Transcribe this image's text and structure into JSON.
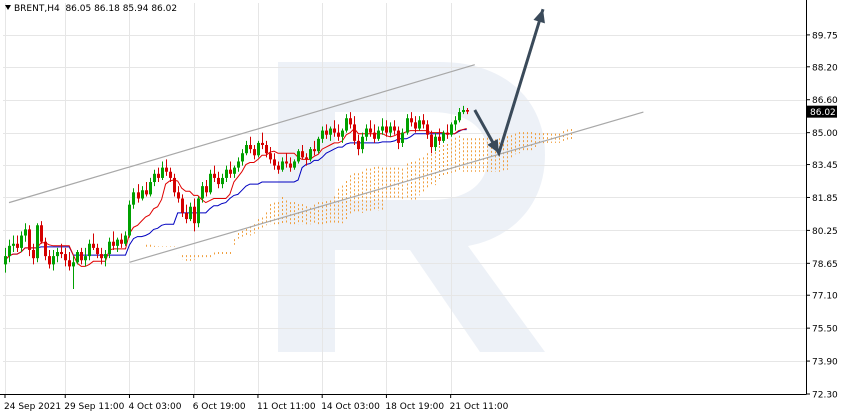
{
  "header": {
    "symbol": "BRENT,H4",
    "ohlc": "86.05 86.18 85.94 86.02"
  },
  "colors": {
    "candle_up": "#00a000",
    "candle_down": "#d40000",
    "tenkan": "#e00000",
    "kijun": "#0000c0",
    "cloud": "#f0a040",
    "channel": "#a8a8a8",
    "arrow": "#3a4a5a",
    "grid": "#e6e6e6",
    "watermark": "#dfe6f0",
    "price_tag_bg": "#000000",
    "price_tag_text": "#ffffff"
  },
  "chart_data": {
    "type": "candlestick",
    "symbol": "BRENT",
    "timeframe": "H4",
    "current_price": "86.02",
    "ylim": [
      72.3,
      91.3
    ],
    "yticks": [
      "89.75",
      "88.20",
      "86.60",
      "85.00",
      "83.45",
      "81.85",
      "80.25",
      "78.65",
      "77.10",
      "75.50",
      "73.90",
      "72.30"
    ],
    "xticks": [
      "24 Sep 2021",
      "29 Sep 11:00",
      "4 Oct 03:00",
      "6 Oct 19:00",
      "11 Oct 11:00",
      "14 Oct 03:00",
      "18 Oct 19:00",
      "21 Oct 11:00"
    ],
    "xtick_bars": [
      0,
      15,
      31,
      47,
      63,
      79,
      95,
      111
    ],
    "total_bars": 200,
    "visible_bars": 123,
    "candles": [
      [
        78.6,
        79.4,
        78.2,
        79.0
      ],
      [
        79.0,
        79.8,
        78.7,
        79.5
      ],
      [
        79.5,
        80.0,
        79.2,
        79.6
      ],
      [
        79.6,
        80.0,
        79.2,
        79.4
      ],
      [
        79.4,
        80.2,
        79.2,
        80.0
      ],
      [
        80.0,
        80.6,
        79.7,
        80.3
      ],
      [
        80.3,
        80.5,
        79.0,
        79.3
      ],
      [
        79.3,
        79.6,
        78.6,
        78.9
      ],
      [
        78.9,
        80.6,
        78.7,
        80.5
      ],
      [
        80.5,
        80.7,
        79.6,
        79.7
      ],
      [
        79.7,
        79.9,
        78.8,
        79.0
      ],
      [
        79.0,
        79.3,
        78.4,
        78.6
      ],
      [
        78.6,
        79.3,
        78.3,
        79.0
      ],
      [
        79.0,
        79.4,
        78.7,
        79.2
      ],
      [
        79.2,
        79.6,
        78.9,
        79.1
      ],
      [
        79.1,
        79.4,
        78.5,
        78.8
      ],
      [
        78.8,
        79.2,
        78.3,
        78.5
      ],
      [
        78.5,
        79.0,
        77.4,
        78.7
      ],
      [
        78.7,
        79.3,
        78.6,
        79.2
      ],
      [
        79.2,
        79.4,
        78.6,
        78.8
      ],
      [
        78.8,
        79.4,
        78.5,
        79.0
      ],
      [
        79.0,
        79.8,
        78.8,
        79.6
      ],
      [
        79.6,
        80.1,
        79.3,
        79.4
      ],
      [
        79.4,
        79.6,
        78.9,
        79.1
      ],
      [
        79.1,
        79.4,
        78.6,
        78.9
      ],
      [
        78.9,
        79.3,
        78.5,
        79.1
      ],
      [
        79.1,
        79.9,
        78.9,
        79.7
      ],
      [
        79.7,
        80.2,
        79.3,
        79.5
      ],
      [
        79.5,
        79.9,
        79.2,
        79.8
      ],
      [
        79.8,
        80.1,
        79.4,
        79.6
      ],
      [
        79.6,
        80.2,
        79.5,
        80.0
      ],
      [
        80.0,
        81.7,
        79.9,
        81.5
      ],
      [
        81.5,
        82.3,
        81.3,
        82.1
      ],
      [
        82.1,
        82.5,
        81.6,
        81.8
      ],
      [
        81.8,
        82.4,
        81.7,
        82.2
      ],
      [
        82.2,
        82.6,
        81.9,
        82.0
      ],
      [
        82.0,
        82.8,
        81.9,
        82.6
      ],
      [
        82.6,
        83.2,
        82.4,
        83.0
      ],
      [
        83.0,
        83.3,
        82.6,
        82.8
      ],
      [
        82.8,
        83.6,
        82.7,
        83.3
      ],
      [
        83.3,
        83.7,
        82.9,
        83.1
      ],
      [
        83.1,
        83.3,
        82.6,
        82.8
      ],
      [
        82.8,
        83.0,
        81.9,
        82.1
      ],
      [
        82.1,
        82.4,
        81.6,
        81.8
      ],
      [
        81.8,
        82.0,
        80.9,
        81.1
      ],
      [
        81.1,
        81.5,
        80.6,
        80.8
      ],
      [
        80.8,
        81.6,
        80.7,
        81.4
      ],
      [
        81.4,
        81.8,
        80.2,
        80.6
      ],
      [
        80.6,
        81.9,
        80.4,
        81.8
      ],
      [
        81.8,
        82.6,
        81.6,
        82.4
      ],
      [
        82.4,
        82.7,
        81.9,
        82.1
      ],
      [
        82.1,
        83.2,
        82.0,
        83.0
      ],
      [
        83.0,
        83.4,
        82.6,
        82.8
      ],
      [
        82.8,
        83.1,
        82.3,
        82.5
      ],
      [
        82.5,
        83.0,
        82.3,
        82.8
      ],
      [
        82.8,
        83.4,
        82.6,
        83.2
      ],
      [
        83.2,
        83.6,
        82.8,
        83.0
      ],
      [
        83.0,
        83.4,
        82.8,
        83.3
      ],
      [
        83.3,
        83.8,
        83.1,
        83.6
      ],
      [
        83.6,
        84.2,
        83.4,
        84.0
      ],
      [
        84.0,
        84.6,
        83.9,
        84.4
      ],
      [
        84.4,
        84.8,
        84.0,
        84.2
      ],
      [
        84.2,
        84.4,
        83.7,
        83.9
      ],
      [
        83.9,
        84.6,
        83.8,
        84.5
      ],
      [
        84.5,
        85.0,
        84.2,
        84.4
      ],
      [
        84.4,
        84.6,
        83.8,
        84.0
      ],
      [
        84.0,
        84.3,
        83.5,
        83.7
      ],
      [
        83.7,
        84.0,
        83.2,
        83.4
      ],
      [
        83.4,
        83.6,
        83.0,
        83.2
      ],
      [
        83.2,
        83.8,
        83.1,
        83.6
      ],
      [
        83.6,
        84.0,
        83.3,
        83.5
      ],
      [
        83.5,
        83.8,
        83.1,
        83.3
      ],
      [
        83.3,
        83.7,
        83.2,
        83.6
      ],
      [
        83.6,
        84.2,
        83.5,
        84.1
      ],
      [
        84.1,
        84.4,
        83.7,
        83.8
      ],
      [
        83.8,
        84.0,
        83.4,
        83.7
      ],
      [
        83.7,
        84.3,
        83.6,
        84.2
      ],
      [
        84.2,
        84.6,
        83.9,
        84.1
      ],
      [
        84.1,
        84.8,
        84.0,
        84.7
      ],
      [
        84.7,
        85.3,
        84.5,
        85.1
      ],
      [
        85.1,
        85.4,
        84.7,
        84.9
      ],
      [
        84.9,
        85.3,
        84.6,
        85.2
      ],
      [
        85.2,
        85.6,
        84.8,
        85.0
      ],
      [
        85.0,
        85.4,
        84.6,
        84.8
      ],
      [
        84.8,
        85.2,
        84.5,
        85.1
      ],
      [
        85.1,
        85.9,
        85.0,
        85.7
      ],
      [
        85.7,
        86.0,
        85.2,
        85.4
      ],
      [
        85.4,
        85.8,
        84.4,
        84.6
      ],
      [
        84.6,
        84.9,
        83.9,
        84.2
      ],
      [
        84.2,
        85.0,
        84.0,
        84.8
      ],
      [
        84.8,
        85.4,
        84.6,
        85.2
      ],
      [
        85.2,
        85.6,
        84.8,
        85.0
      ],
      [
        85.0,
        85.4,
        84.5,
        84.7
      ],
      [
        84.7,
        85.3,
        84.6,
        85.1
      ],
      [
        85.1,
        85.7,
        84.9,
        85.3
      ],
      [
        85.3,
        85.6,
        84.8,
        85.0
      ],
      [
        85.0,
        85.5,
        84.8,
        85.3
      ],
      [
        85.3,
        85.6,
        84.9,
        85.1
      ],
      [
        85.1,
        85.3,
        84.2,
        84.5
      ],
      [
        84.5,
        85.2,
        84.3,
        85.0
      ],
      [
        85.0,
        85.9,
        84.9,
        85.7
      ],
      [
        85.7,
        86.0,
        85.3,
        85.5
      ],
      [
        85.5,
        85.8,
        85.0,
        85.2
      ],
      [
        85.2,
        85.8,
        85.1,
        85.6
      ],
      [
        85.6,
        85.9,
        85.2,
        85.4
      ],
      [
        85.4,
        85.6,
        84.7,
        84.9
      ],
      [
        84.9,
        85.1,
        84.0,
        84.3
      ],
      [
        84.3,
        85.0,
        84.1,
        84.8
      ],
      [
        84.8,
        85.2,
        84.4,
        84.6
      ],
      [
        84.6,
        85.1,
        84.5,
        85.0
      ],
      [
        85.0,
        85.4,
        84.7,
        84.9
      ],
      [
        84.9,
        85.5,
        84.8,
        85.4
      ],
      [
        85.4,
        85.8,
        85.1,
        85.6
      ],
      [
        85.6,
        86.2,
        85.5,
        86.0
      ],
      [
        86.0,
        86.3,
        85.9,
        86.1
      ],
      [
        86.1,
        86.2,
        85.9,
        86.02
      ]
    ]
  },
  "annotations": {
    "channel_upper": {
      "from_bar": 1,
      "from_price": 81.6,
      "to_bar": 117,
      "to_price": 88.3
    },
    "channel_lower": {
      "from_bar": 31,
      "from_price": 78.7,
      "to_bar": 159,
      "to_price": 86.0
    },
    "forecast_arrow": [
      {
        "bar": 117,
        "price": 86.1
      },
      {
        "bar": 123,
        "price": 84.0
      },
      {
        "bar": 134,
        "price": 91.0
      }
    ]
  }
}
